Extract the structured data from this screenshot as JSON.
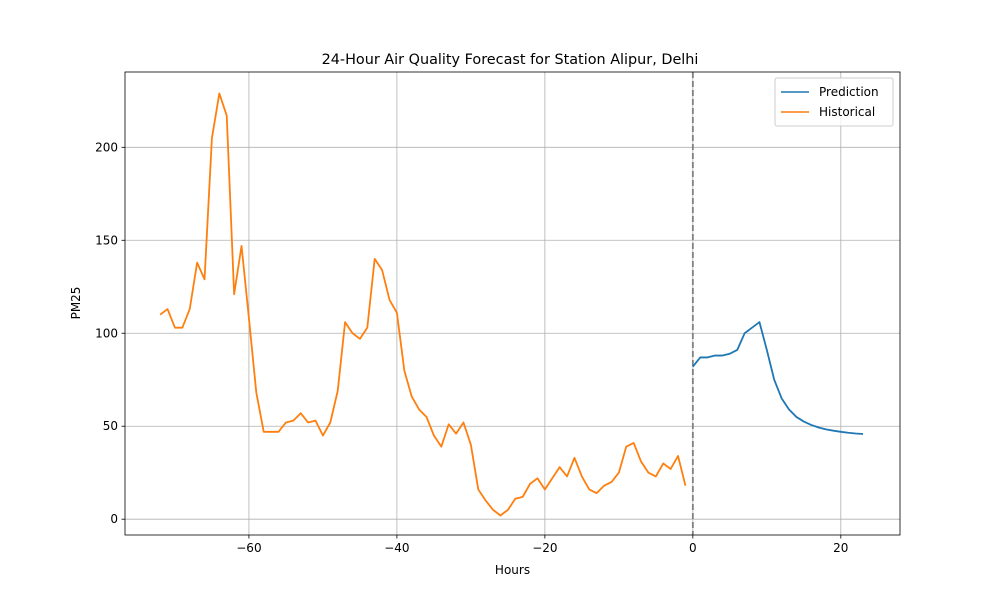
{
  "chart_data": {
    "type": "line",
    "title": "24-Hour Air Quality Forecast for Station Alipur, Delhi",
    "xlabel": "Hours",
    "ylabel": "PM25",
    "xlim": [
      -76.75,
      28
    ],
    "ylim": [
      -8.5,
      240.5
    ],
    "xticks": [
      -60,
      -40,
      -20,
      0,
      20
    ],
    "xtick_labels": [
      "−60",
      "−40",
      "−20",
      "0",
      "20"
    ],
    "yticks": [
      0,
      50,
      100,
      150,
      200
    ],
    "ytick_labels": [
      "0",
      "50",
      "100",
      "150",
      "200"
    ],
    "grid": true,
    "legend_position": "top-right",
    "vline": {
      "x": 0,
      "color": "#808080",
      "style": "dashed"
    },
    "series": [
      {
        "name": "Prediction",
        "color": "#1f77b4",
        "x": [
          0,
          1,
          2,
          3,
          4,
          5,
          6,
          7,
          8,
          9,
          10,
          11,
          12,
          13,
          14,
          15,
          16,
          17,
          18,
          19,
          20,
          21,
          22,
          23
        ],
        "y": [
          82,
          87,
          87,
          88,
          88,
          89,
          91,
          100,
          103,
          106,
          91,
          75,
          65,
          59,
          55,
          52.5,
          50.7,
          49.3,
          48.3,
          47.6,
          47,
          46.5,
          46.1,
          45.8
        ]
      },
      {
        "name": "Historical",
        "color": "#ff7f0e",
        "x": [
          -72,
          -71,
          -70,
          -69,
          -68,
          -67,
          -66,
          -65,
          -64,
          -63,
          -62,
          -61,
          -60,
          -59,
          -58,
          -57,
          -56,
          -55,
          -54,
          -53,
          -52,
          -51,
          -50,
          -49,
          -48,
          -47,
          -46,
          -45,
          -44,
          -43,
          -42,
          -41,
          -40,
          -39,
          -38,
          -37,
          -36,
          -35,
          -34,
          -33,
          -32,
          -31,
          -30,
          -29,
          -28,
          -27,
          -26,
          -25,
          -24,
          -23,
          -22,
          -21,
          -20,
          -19,
          -18,
          -17,
          -16,
          -15,
          -14,
          -13,
          -12,
          -11,
          -10,
          -9,
          -8,
          -7,
          -6,
          -5,
          -4,
          -3,
          -2,
          -1
        ],
        "y": [
          110,
          113,
          103,
          103,
          113,
          138,
          129,
          205,
          229,
          217,
          121,
          147,
          108,
          68,
          47,
          47,
          47,
          52,
          53,
          57,
          52,
          53,
          45,
          52,
          69,
          106,
          100,
          97,
          103,
          140,
          134,
          118,
          111,
          80,
          66,
          59,
          55,
          45,
          39,
          51,
          46,
          52,
          40,
          16,
          10,
          5,
          2,
          5,
          11,
          12,
          19,
          22,
          16,
          22,
          28,
          23,
          33,
          23,
          16,
          14,
          18,
          20,
          25,
          39,
          41,
          31,
          25,
          23,
          30,
          27,
          34,
          18
        ]
      }
    ]
  }
}
